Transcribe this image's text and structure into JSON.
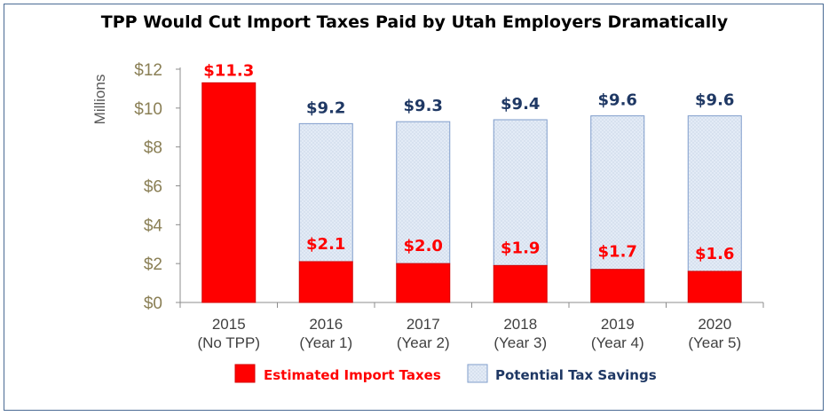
{
  "chart_data": {
    "type": "bar",
    "title": "TPP Would Cut Import Taxes Paid by Utah Employers Dramatically",
    "ylabel": "Millions",
    "ylim": [
      0,
      12
    ],
    "yticks": [
      "$0",
      "$2",
      "$4",
      "$6",
      "$8",
      "$10",
      "$12"
    ],
    "categories": [
      [
        "2015",
        "(No TPP)"
      ],
      [
        "2016",
        "(Year 1)"
      ],
      [
        "2017",
        "(Year 2)"
      ],
      [
        "2018",
        "(Year 3)"
      ],
      [
        "2019",
        "(Year 4)"
      ],
      [
        "2020",
        "(Year 5)"
      ]
    ],
    "series": [
      {
        "name": "Estimated Import Taxes",
        "values": [
          11.3,
          2.1,
          2.0,
          1.9,
          1.7,
          1.6
        ],
        "labels": [
          "$11.3",
          "$2.1",
          "$2.0",
          "$1.9",
          "$1.7",
          "$1.6"
        ],
        "color": "#ff0000"
      },
      {
        "name": "Potential Tax Savings",
        "totals": [
          null,
          9.2,
          9.3,
          9.4,
          9.6,
          9.6
        ],
        "labels": [
          "",
          "$9.2",
          "$9.3",
          "$9.4",
          "$9.6",
          "$9.6"
        ],
        "color": "#dbe6f4",
        "label_color": "#1f3864"
      }
    ],
    "legend": "bottom",
    "grid": false
  }
}
